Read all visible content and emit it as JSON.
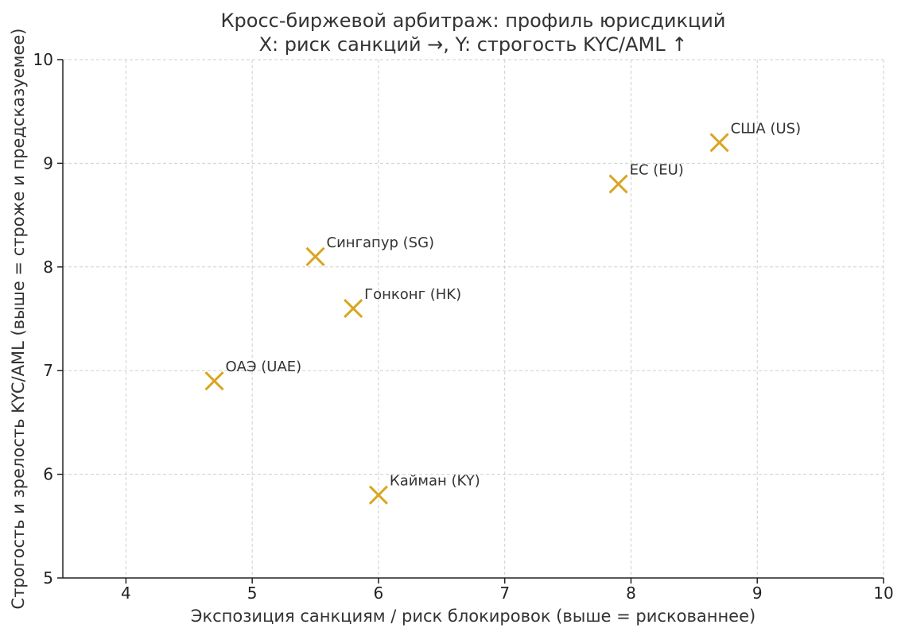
{
  "chart_data": {
    "type": "scatter",
    "title": [
      "Кросс-биржевой арбитраж: профиль юрисдикций",
      "X: риск санкций →,  Y: строгость KYC/AML ↑"
    ],
    "xlabel": "Экспозиция санкциям / риск блокировок (выше = рискованнее)",
    "ylabel": "Строгость и зрелость KYC/AML (выше = строже и предсказуемее)",
    "xlim": [
      3.5,
      10
    ],
    "ylim": [
      5,
      10
    ],
    "xticks": [
      4,
      5,
      6,
      7,
      8,
      9,
      10
    ],
    "yticks": [
      5,
      6,
      7,
      8,
      9,
      10
    ],
    "grid": true,
    "marker": "x",
    "marker_color": "#DAA520",
    "points": [
      {
        "label": "США (US)",
        "x": 8.7,
        "y": 9.2
      },
      {
        "label": "ЕС (EU)",
        "x": 7.9,
        "y": 8.8
      },
      {
        "label": "Сингапур (SG)",
        "x": 5.5,
        "y": 8.1
      },
      {
        "label": "Гонконг (HK)",
        "x": 5.8,
        "y": 7.6
      },
      {
        "label": "ОАЭ (UAE)",
        "x": 4.7,
        "y": 6.9
      },
      {
        "label": "Кайман (KY)",
        "x": 6.0,
        "y": 5.8
      }
    ]
  }
}
